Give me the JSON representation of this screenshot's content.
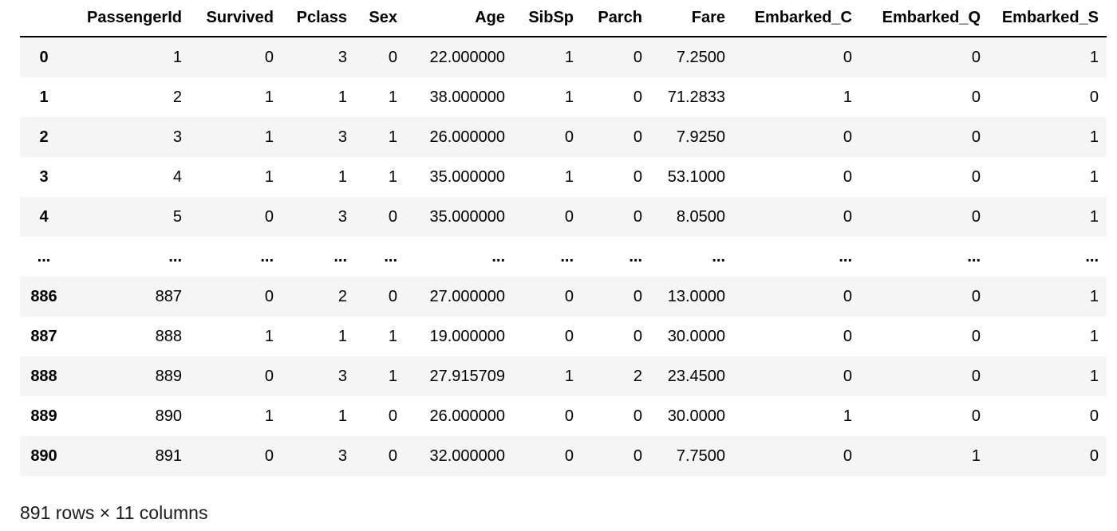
{
  "table": {
    "columns": [
      "PassengerId",
      "Survived",
      "Pclass",
      "Sex",
      "Age",
      "SibSp",
      "Parch",
      "Fare",
      "Embarked_C",
      "Embarked_Q",
      "Embarked_S"
    ],
    "rows": [
      {
        "index": "0",
        "cells": [
          "1",
          "0",
          "3",
          "0",
          "22.000000",
          "1",
          "0",
          "7.2500",
          "0",
          "0",
          "1"
        ]
      },
      {
        "index": "1",
        "cells": [
          "2",
          "1",
          "1",
          "1",
          "38.000000",
          "1",
          "0",
          "71.2833",
          "1",
          "0",
          "0"
        ]
      },
      {
        "index": "2",
        "cells": [
          "3",
          "1",
          "3",
          "1",
          "26.000000",
          "0",
          "0",
          "7.9250",
          "0",
          "0",
          "1"
        ]
      },
      {
        "index": "3",
        "cells": [
          "4",
          "1",
          "1",
          "1",
          "35.000000",
          "1",
          "0",
          "53.1000",
          "0",
          "0",
          "1"
        ]
      },
      {
        "index": "4",
        "cells": [
          "5",
          "0",
          "3",
          "0",
          "35.000000",
          "0",
          "0",
          "8.0500",
          "0",
          "0",
          "1"
        ]
      },
      {
        "index": "...",
        "cells": [
          "...",
          "...",
          "...",
          "...",
          "...",
          "...",
          "...",
          "...",
          "...",
          "...",
          "..."
        ],
        "ellipsis": true
      },
      {
        "index": "886",
        "cells": [
          "887",
          "0",
          "2",
          "0",
          "27.000000",
          "0",
          "0",
          "13.0000",
          "0",
          "0",
          "1"
        ]
      },
      {
        "index": "887",
        "cells": [
          "888",
          "1",
          "1",
          "1",
          "19.000000",
          "0",
          "0",
          "30.0000",
          "0",
          "0",
          "1"
        ]
      },
      {
        "index": "888",
        "cells": [
          "889",
          "0",
          "3",
          "1",
          "27.915709",
          "1",
          "2",
          "23.4500",
          "0",
          "0",
          "1"
        ]
      },
      {
        "index": "889",
        "cells": [
          "890",
          "1",
          "1",
          "0",
          "26.000000",
          "0",
          "0",
          "30.0000",
          "1",
          "0",
          "0"
        ]
      },
      {
        "index": "890",
        "cells": [
          "891",
          "0",
          "3",
          "0",
          "32.000000",
          "0",
          "0",
          "7.7500",
          "0",
          "1",
          "0"
        ]
      }
    ]
  },
  "shape_caption": "891 rows × 11 columns"
}
